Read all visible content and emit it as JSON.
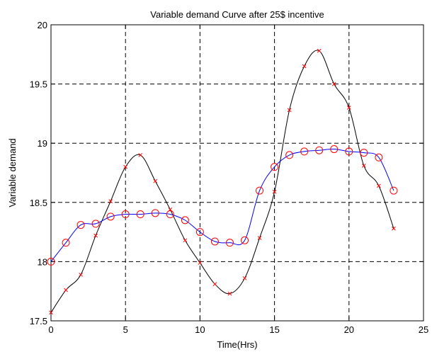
{
  "chart_data": {
    "type": "line",
    "title": "Variable demand Curve after 25$ incentive",
    "xlabel": "Time(Hrs)",
    "ylabel": "Variable demand",
    "xlim": [
      0,
      25
    ],
    "ylim": [
      17.5,
      20
    ],
    "x_ticks": [
      0,
      5,
      10,
      15,
      20,
      25
    ],
    "x_tick_labels": [
      "0",
      "5",
      "10",
      "15",
      "20",
      "25"
    ],
    "y_ticks": [
      17.5,
      18,
      18.5,
      19,
      19.5,
      20
    ],
    "y_tick_labels": [
      "17.5",
      "18",
      "18.5",
      "19",
      "19.5",
      "20"
    ],
    "grid": true,
    "grid_style": "dashed",
    "series": [
      {
        "line_color": "#000000",
        "marker": "x",
        "marker_color": "#ff0000",
        "x": [
          0,
          1,
          2,
          3,
          4,
          5,
          6,
          7,
          8,
          9,
          10,
          11,
          12,
          13,
          14,
          15,
          16,
          17,
          18,
          19,
          20,
          21,
          22,
          23
        ],
        "values": [
          17.57,
          17.76,
          17.89,
          18.22,
          18.51,
          18.8,
          18.9,
          18.68,
          18.44,
          18.18,
          17.99,
          17.81,
          17.73,
          17.86,
          18.2,
          18.59,
          19.28,
          19.65,
          19.78,
          19.5,
          19.3,
          18.81,
          18.64,
          18.28
        ]
      },
      {
        "line_color": "#0000ff",
        "marker": "o",
        "marker_color": "#ff0000",
        "x": [
          0,
          1,
          2,
          3,
          4,
          5,
          6,
          7,
          8,
          9,
          10,
          11,
          12,
          13,
          14,
          15,
          16,
          17,
          18,
          19,
          20,
          21,
          22,
          23
        ],
        "values": [
          18.0,
          18.16,
          18.31,
          18.32,
          18.38,
          18.4,
          18.4,
          18.41,
          18.4,
          18.35,
          18.25,
          18.17,
          18.16,
          18.18,
          18.6,
          18.8,
          18.9,
          18.93,
          18.94,
          18.95,
          18.93,
          18.92,
          18.88,
          18.6
        ]
      }
    ]
  }
}
